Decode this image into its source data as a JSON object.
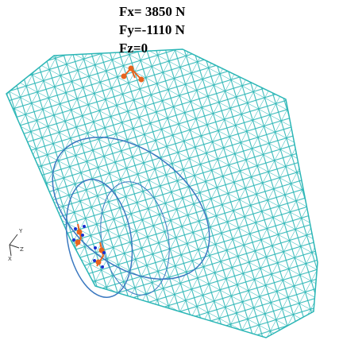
{
  "force_labels": [
    "Fx= 3850 N",
    "Fy=-1110 N",
    "Fz=0"
  ],
  "axis_labels": [
    "Y",
    "Z",
    "X"
  ]
}
